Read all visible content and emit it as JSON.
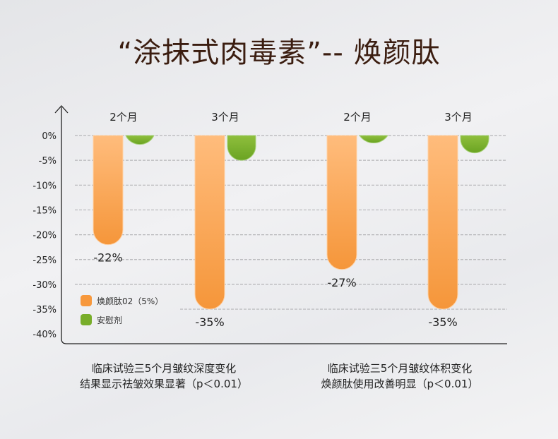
{
  "title": "“涂抹式肉毒素”-- 焕颜肽",
  "chart_data": {
    "type": "bar",
    "title": "“涂抹式肉毒素”-- 焕颜肽",
    "categories": [
      "2个月",
      "3个月",
      "2个月",
      "3个月"
    ],
    "series": [
      {
        "name": "焕颜肽02（5%）",
        "color": "#f7983c",
        "values": [
          -22,
          -35,
          -27,
          -35
        ]
      },
      {
        "name": "安慰剂",
        "color": "#78ad2a",
        "values": [
          -1.8,
          -5,
          -1.5,
          -3.5
        ]
      }
    ],
    "data_labels": [
      "-22%",
      "-35%",
      "-27%",
      "-35%"
    ],
    "y_ticks": [
      "0%",
      "-5%",
      "-10%",
      "-15%",
      "-20%",
      "-25%",
      "-30%",
      "-35%",
      "-40%"
    ],
    "ylim": [
      -40,
      0
    ],
    "grid": true,
    "legend": "bottom-left",
    "xlabel": "",
    "ylabel": ""
  },
  "captions": [
    {
      "line1": "临床试验三5个月皱纹深度变化",
      "line2": "结果显示祛皱效果显著（p＜0.01）"
    },
    {
      "line1": "临床试验三5个月皱纹体积变化",
      "line2": "焕颜肽使用改善明显（p＜0.01）"
    }
  ]
}
